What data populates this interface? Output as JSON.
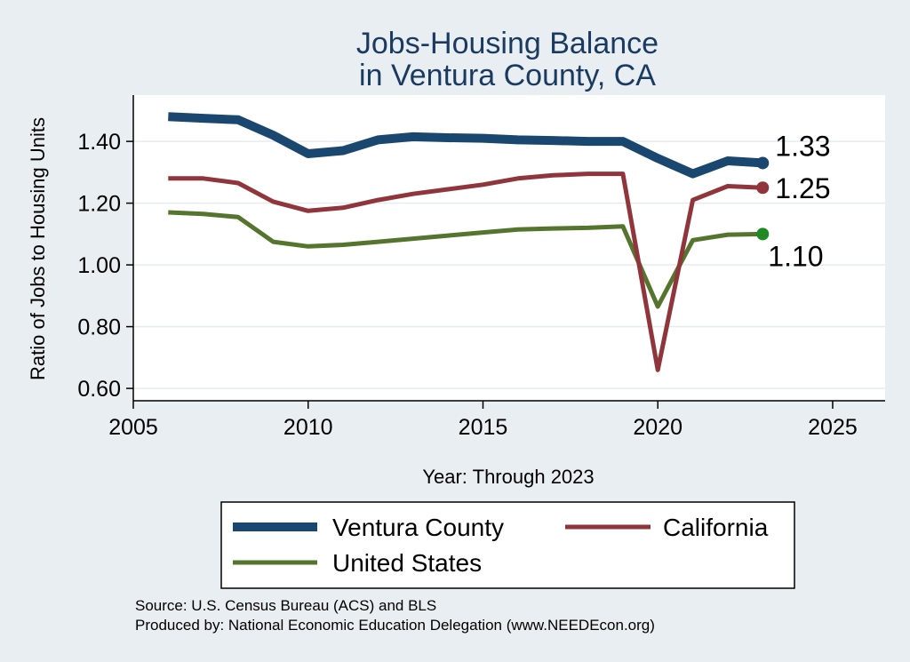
{
  "chart_data": {
    "type": "line",
    "title": [
      "Jobs-Housing Balance",
      "in Ventura County, CA"
    ],
    "xlabel": "Year: Through 2023",
    "ylabel": "Ratio of Jobs to Housing Units",
    "xlim": [
      2005,
      2026.5
    ],
    "ylim": [
      0.56,
      1.55
    ],
    "xticks": [
      2005,
      2010,
      2015,
      2020,
      2025
    ],
    "yticks": [
      0.6,
      0.8,
      1.0,
      1.2,
      1.4
    ],
    "ytick_labels": [
      "0.60",
      "0.80",
      "1.00",
      "1.20",
      "1.40"
    ],
    "grid": "horizontal",
    "x": [
      2006,
      2007,
      2008,
      2009,
      2010,
      2011,
      2012,
      2013,
      2014,
      2015,
      2016,
      2017,
      2018,
      2019,
      2020,
      2021,
      2022,
      2023
    ],
    "series": [
      {
        "name": "Ventura County",
        "color": "#1a476f",
        "values": [
          1.48,
          1.475,
          1.47,
          1.42,
          1.36,
          1.37,
          1.405,
          1.415,
          1.412,
          1.41,
          1.405,
          1.403,
          1.4,
          1.4,
          1.345,
          1.295,
          1.337,
          1.33
        ],
        "end_label": "1.33"
      },
      {
        "name": "California",
        "color": "#90353b",
        "values": [
          1.28,
          1.28,
          1.265,
          1.205,
          1.175,
          1.185,
          1.21,
          1.23,
          1.245,
          1.26,
          1.28,
          1.29,
          1.295,
          1.295,
          0.66,
          1.21,
          1.255,
          1.25
        ],
        "end_label": "1.25"
      },
      {
        "name": "United States",
        "color": "#55752f",
        "values": [
          1.17,
          1.165,
          1.155,
          1.075,
          1.06,
          1.065,
          1.075,
          1.085,
          1.095,
          1.105,
          1.115,
          1.118,
          1.12,
          1.125,
          0.865,
          1.08,
          1.098,
          1.1
        ],
        "end_label": "1.10"
      }
    ],
    "legend": {
      "placement": "bottom"
    },
    "notes": [
      "Source: U.S. Census Bureau (ACS) and BLS",
      "Produced by: National Economic Education Delegation (www.NEEDEcon.org)"
    ]
  }
}
